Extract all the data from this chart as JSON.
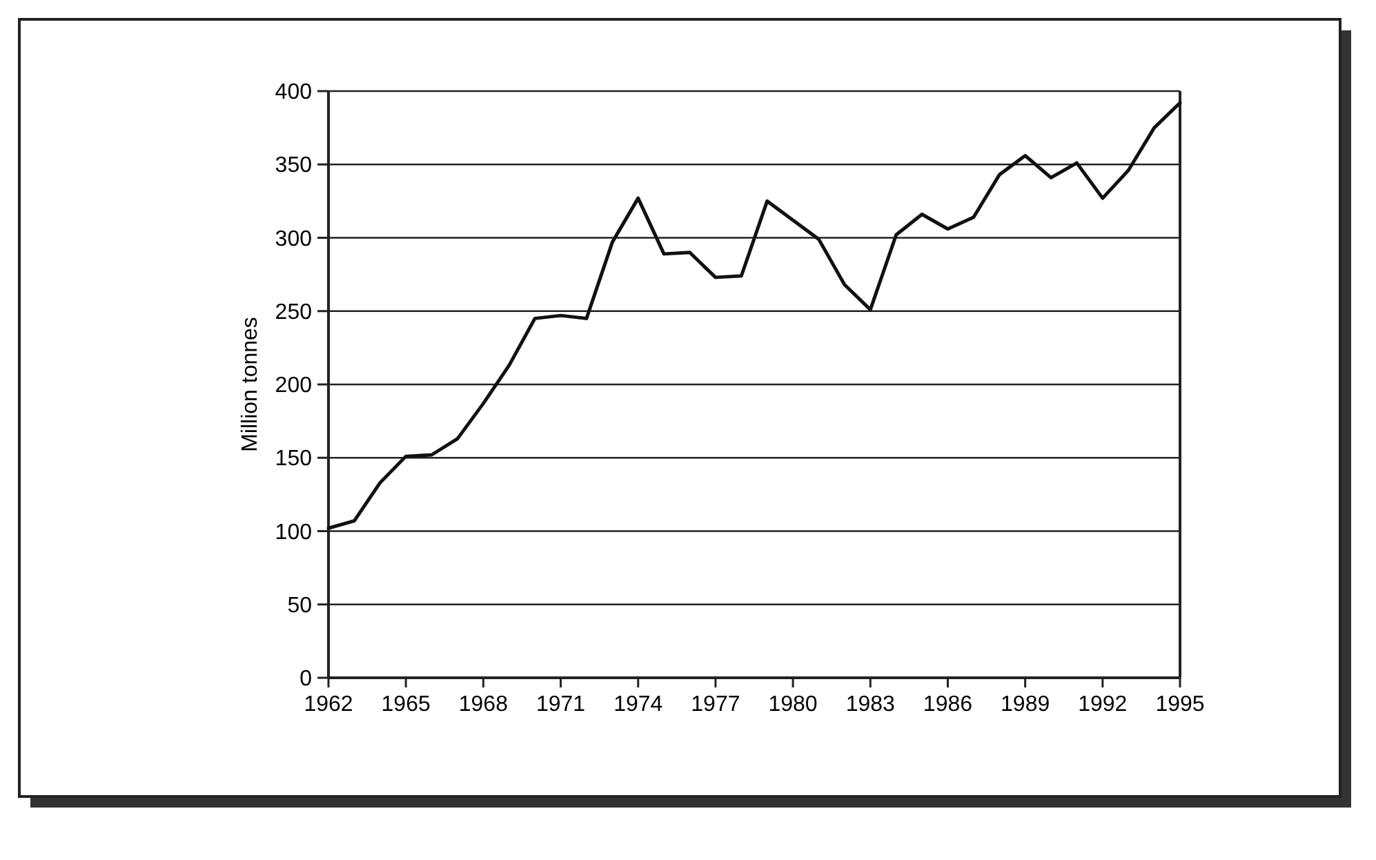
{
  "chart_data": {
    "type": "line",
    "ylabel": "Million tonnes",
    "x": [
      1962,
      1963,
      1964,
      1965,
      1966,
      1967,
      1968,
      1969,
      1970,
      1971,
      1972,
      1973,
      1974,
      1975,
      1976,
      1977,
      1978,
      1979,
      1980,
      1981,
      1982,
      1983,
      1984,
      1985,
      1986,
      1987,
      1988,
      1989,
      1990,
      1991,
      1992,
      1993,
      1994,
      1995
    ],
    "series": [
      {
        "color": "#111111",
        "values": [
          102,
          107,
          133,
          151,
          152,
          163,
          187,
          213,
          245,
          247,
          245,
          297,
          327,
          289,
          290,
          273,
          274,
          325,
          312,
          299,
          268,
          251,
          302,
          316,
          306,
          314,
          343,
          356,
          341,
          351,
          327,
          346,
          375,
          392
        ]
      }
    ],
    "xlim": [
      1962,
      1995
    ],
    "xticks": [
      1962,
      1965,
      1968,
      1971,
      1974,
      1977,
      1980,
      1983,
      1986,
      1989,
      1992,
      1995
    ],
    "ylim": [
      0,
      400
    ],
    "yticks": [
      0,
      50,
      100,
      150,
      200,
      250,
      300,
      350,
      400
    ],
    "grid": "y",
    "marker": "none",
    "line_style": "solid"
  }
}
